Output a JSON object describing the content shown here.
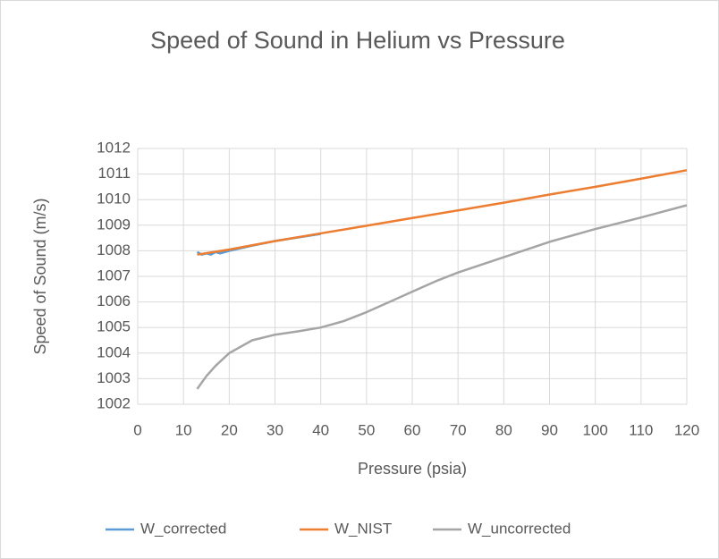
{
  "chart_data": {
    "type": "line",
    "title": "Speed of Sound in Helium vs Pressure",
    "x_label": "Pressure (psia)",
    "y_label": "Speed of Sound (m/s)",
    "xlim": [
      0,
      120
    ],
    "xticks": [
      0,
      10,
      20,
      30,
      40,
      50,
      60,
      70,
      80,
      90,
      100,
      110,
      120
    ],
    "ylim": [
      1002,
      1012
    ],
    "yticks": [
      1002,
      1003,
      1004,
      1005,
      1006,
      1007,
      1008,
      1009,
      1010,
      1011,
      1012
    ],
    "grid": true,
    "legend": "bottom",
    "series": [
      {
        "name": "W_corrected",
        "color": "#5b9bd5",
        "x": [
          13,
          14,
          15,
          16,
          17,
          18,
          20,
          25,
          30,
          35,
          40
        ],
        "values": [
          1007.95,
          1007.85,
          1007.9,
          1007.85,
          1007.95,
          1007.9,
          1008.0,
          1008.2,
          1008.38,
          1008.52,
          1008.66
        ]
      },
      {
        "name": "W_NIST",
        "color": "#ed7d31",
        "x": [
          13,
          20,
          30,
          40,
          50,
          60,
          70,
          80,
          90,
          100,
          110,
          120
        ],
        "values": [
          1007.85,
          1008.05,
          1008.38,
          1008.68,
          1008.98,
          1009.28,
          1009.58,
          1009.88,
          1010.2,
          1010.5,
          1010.82,
          1011.15
        ]
      },
      {
        "name": "W_uncorrected",
        "color": "#a5a5a5",
        "x": [
          13,
          15,
          17,
          20,
          25,
          30,
          35,
          40,
          45,
          50,
          55,
          60,
          65,
          70,
          80,
          90,
          100,
          110,
          120
        ],
        "values": [
          1002.6,
          1003.1,
          1003.5,
          1004.0,
          1004.5,
          1004.72,
          1004.85,
          1005.0,
          1005.25,
          1005.6,
          1006.0,
          1006.4,
          1006.8,
          1007.15,
          1007.75,
          1008.35,
          1008.85,
          1009.3,
          1009.78
        ]
      }
    ]
  }
}
